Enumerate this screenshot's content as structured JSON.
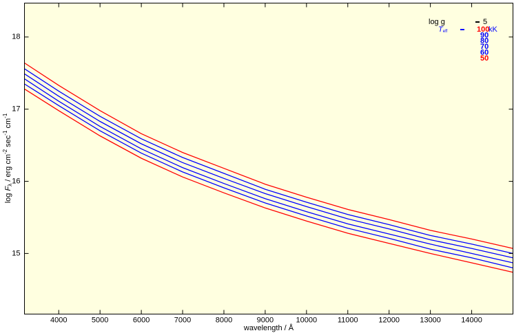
{
  "chart_data": {
    "type": "line",
    "x_label": "wavelength / Å",
    "y_label_parts": [
      "log ",
      "F",
      "λ",
      " / erg cm",
      "-2",
      " sec",
      "-1",
      " cm",
      "-1"
    ],
    "legend_logg_label": "log g",
    "legend_logg_value": "5",
    "legend_teff_parts": [
      "T",
      "eff"
    ],
    "legend_unit": "kK",
    "x": [
      3170,
      4000,
      5000,
      6000,
      7000,
      8000,
      9000,
      10000,
      11000,
      12000,
      13000,
      14000,
      15000
    ],
    "series": [
      {
        "name": "100",
        "color": "#ff0000",
        "values": [
          17.64,
          17.33,
          16.98,
          16.66,
          16.4,
          16.18,
          15.96,
          15.78,
          15.61,
          15.47,
          15.32,
          15.2,
          15.07
        ]
      },
      {
        "name": "90",
        "color": "#0000ff",
        "values": [
          17.56,
          17.25,
          16.9,
          16.59,
          16.33,
          16.11,
          15.89,
          15.71,
          15.54,
          15.4,
          15.25,
          15.13,
          15.0
        ]
      },
      {
        "name": "80",
        "color": "#0000ff",
        "values": [
          17.49,
          17.18,
          16.83,
          16.52,
          16.26,
          16.04,
          15.83,
          15.65,
          15.48,
          15.34,
          15.19,
          15.07,
          14.94
        ]
      },
      {
        "name": "70",
        "color": "#0000ff",
        "values": [
          17.42,
          17.11,
          16.76,
          16.45,
          16.19,
          15.97,
          15.76,
          15.58,
          15.41,
          15.27,
          15.13,
          15.0,
          14.87
        ]
      },
      {
        "name": "60",
        "color": "#0000ff",
        "values": [
          17.35,
          17.05,
          16.7,
          16.39,
          16.13,
          15.91,
          15.7,
          15.52,
          15.35,
          15.21,
          15.06,
          14.94,
          14.8
        ]
      },
      {
        "name": "50",
        "color": "#ff0000",
        "values": [
          17.28,
          16.98,
          16.63,
          16.32,
          16.06,
          15.84,
          15.63,
          15.45,
          15.28,
          15.14,
          15.0,
          14.87,
          14.74
        ]
      }
    ],
    "xlim": [
      3170,
      15000
    ],
    "ylim": [
      14.16,
      18.47
    ],
    "xticks": [
      4000,
      5000,
      6000,
      7000,
      8000,
      9000,
      10000,
      11000,
      12000,
      13000,
      14000
    ],
    "yticks": [
      15,
      16,
      17,
      18
    ]
  }
}
